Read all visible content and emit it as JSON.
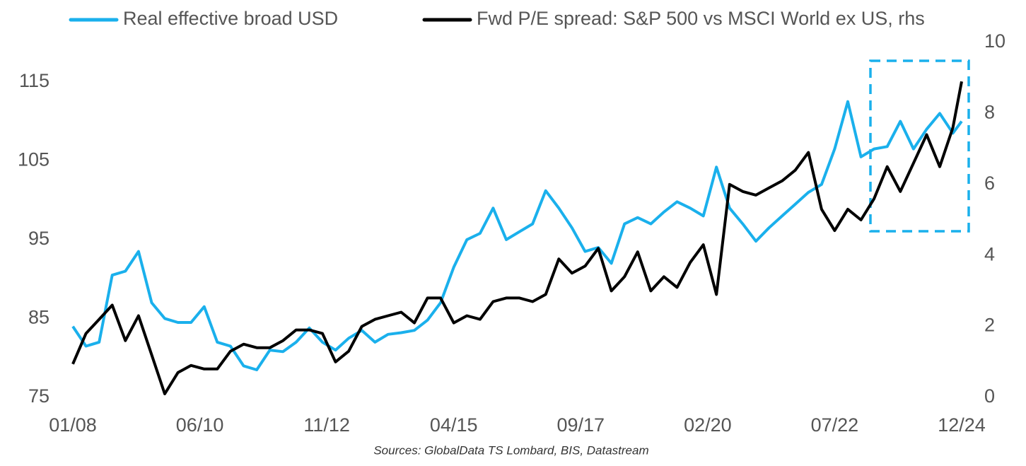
{
  "chart_data": {
    "type": "line",
    "source": "Sources: GlobalData TS Lombard, BIS, Datastream",
    "x": [
      0,
      3,
      6,
      9,
      12,
      15,
      18,
      21,
      24,
      27,
      30,
      33,
      36,
      39,
      42,
      45,
      48,
      51,
      54,
      57,
      60,
      63,
      66,
      69,
      72,
      75,
      78,
      81,
      84,
      87,
      90,
      93,
      96,
      99,
      102,
      105,
      108,
      111,
      114,
      117,
      120,
      123,
      126,
      129,
      132,
      135,
      138,
      141,
      144,
      147,
      150,
      153,
      156,
      159,
      162,
      165,
      168,
      171,
      174,
      177,
      180,
      183,
      186,
      189,
      192,
      195,
      198,
      201,
      203
    ],
    "xlim": [
      0,
      203
    ],
    "xticks": [
      {
        "value": 0,
        "label": "01/08"
      },
      {
        "value": 29,
        "label": "06/10"
      },
      {
        "value": 58,
        "label": "11/12"
      },
      {
        "value": 87,
        "label": "04/15"
      },
      {
        "value": 116,
        "label": "09/17"
      },
      {
        "value": 145,
        "label": "02/20"
      },
      {
        "value": 174,
        "label": "07/22"
      },
      {
        "value": 203,
        "label": "12/24"
      }
    ],
    "ylim": [
      75,
      120
    ],
    "yticks": [
      75,
      85,
      95,
      105,
      115
    ],
    "y2lim": [
      0,
      10
    ],
    "y2ticks": [
      0,
      2,
      4,
      6,
      8,
      10
    ],
    "series": [
      {
        "name": "Real effective broad USD",
        "color": "#1ab0ec",
        "values": [
          84,
          81.5,
          82,
          90.5,
          91,
          93.5,
          87,
          85,
          84.5,
          84.5,
          86.5,
          82,
          81.5,
          79,
          78.5,
          81,
          80.8,
          82,
          83.8,
          82,
          81,
          82.5,
          83.5,
          82,
          83,
          83.2,
          83.5,
          84.8,
          87,
          91.5,
          95,
          95.8,
          99,
          95,
          96,
          97,
          101.2,
          99,
          96.5,
          93.5,
          94,
          92,
          97,
          97.8,
          97,
          98.5,
          99.8,
          99,
          98,
          104.2,
          99,
          97,
          94.8,
          96.5,
          98,
          99.5,
          101,
          102,
          106.5,
          112.5,
          105.5,
          106.5,
          106.8,
          110,
          106.5,
          109,
          111,
          108.5,
          110
        ]
      },
      {
        "name": "Fwd P/E spread: S&P 500 vs MSCI World ex US, rhs",
        "color": "#000000",
        "axis": "y2",
        "values": [
          0.94,
          1.8,
          2.2,
          2.6,
          1.6,
          2.3,
          1.2,
          0.1,
          0.7,
          0.9,
          0.8,
          0.8,
          1.3,
          1.5,
          1.4,
          1.4,
          1.6,
          1.9,
          1.9,
          1.8,
          1.0,
          1.3,
          2.0,
          2.2,
          2.3,
          2.4,
          2.1,
          2.8,
          2.8,
          2.1,
          2.3,
          2.2,
          2.7,
          2.8,
          2.8,
          2.7,
          2.9,
          3.9,
          3.5,
          3.7,
          4.2,
          3.0,
          3.4,
          4.1,
          3.0,
          3.4,
          3.1,
          3.8,
          4.3,
          2.9,
          6.0,
          5.8,
          5.7,
          5.9,
          6.1,
          6.4,
          6.9,
          5.3,
          4.7,
          5.3,
          5.0,
          5.6,
          6.5,
          5.8,
          6.6,
          7.4,
          6.5,
          7.6,
          8.9
        ]
      }
    ]
  }
}
